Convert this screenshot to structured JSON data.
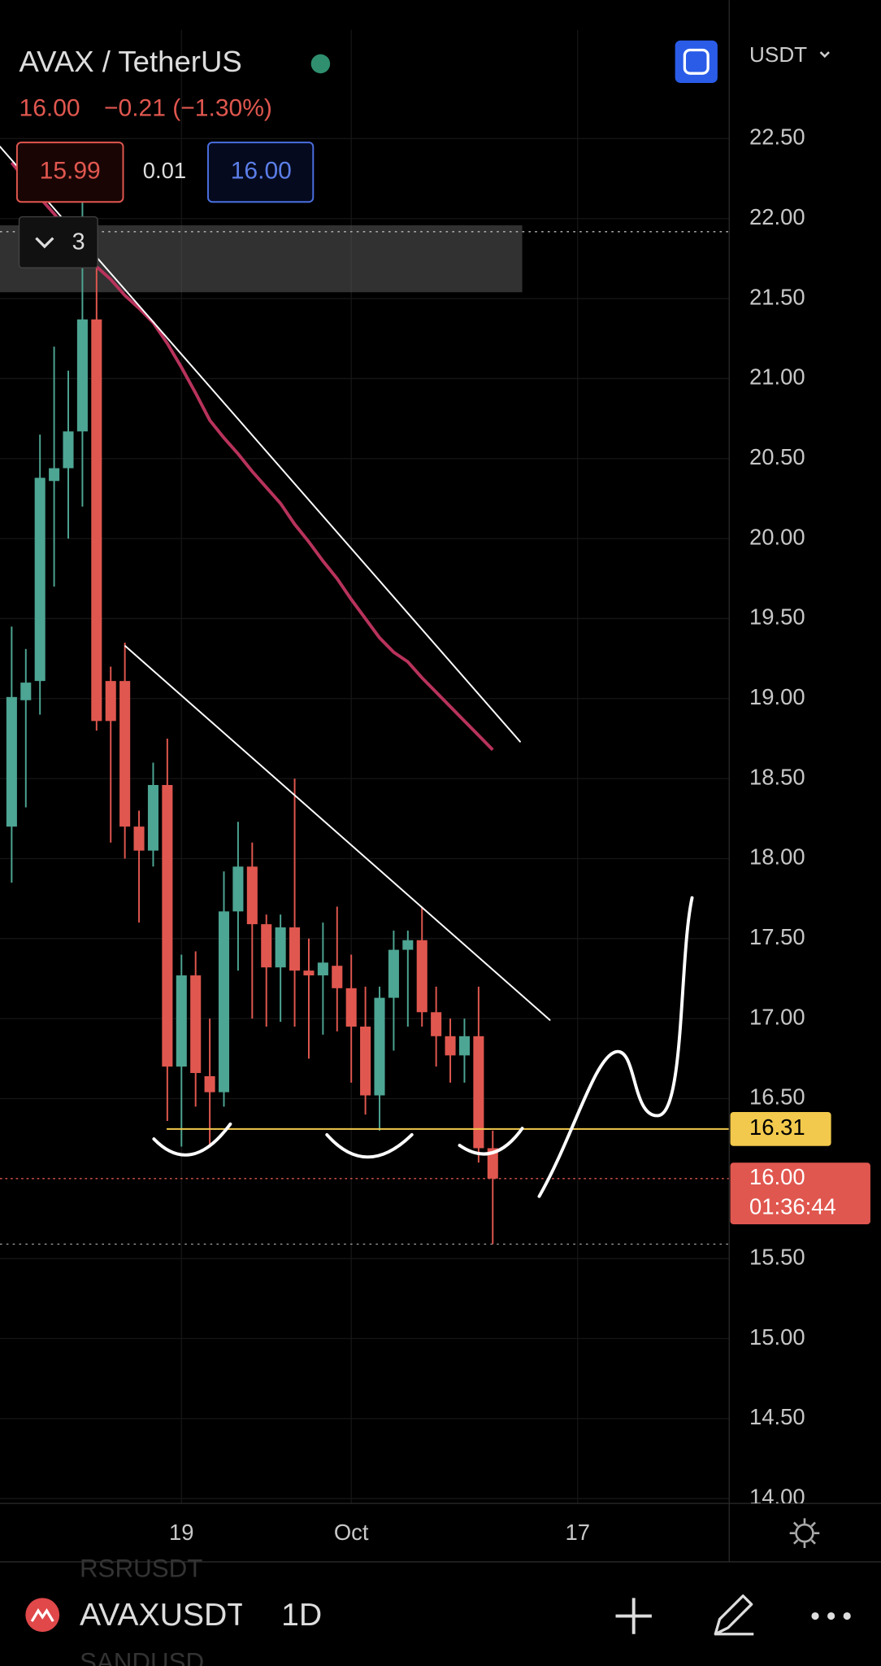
{
  "header": {
    "symbol": "AVAX / TetherUS",
    "last": "16.00",
    "change": "−0.21 (−1.30%)",
    "bid": "15.99",
    "spread": "0.01",
    "ask": "16.00",
    "indicators": "3",
    "currency": "USDT"
  },
  "chart_data": {
    "type": "candlestick",
    "categories": [
      null,
      null,
      null,
      null,
      null,
      null,
      null,
      null,
      null,
      null,
      null,
      null,
      "19",
      null,
      null,
      null,
      null,
      null,
      null,
      null,
      null,
      null,
      null,
      null,
      "Oct",
      null,
      null,
      null,
      null,
      null,
      null,
      null,
      null,
      null,
      null,
      null,
      null,
      null,
      null,
      null,
      "17",
      null,
      null,
      null,
      null,
      null,
      null,
      null,
      null,
      null,
      null
    ],
    "open": [
      18.2,
      18.99,
      19.11,
      20.36,
      20.44,
      20.67,
      21.37,
      19.11,
      19.11,
      18.2,
      18.05,
      18.46,
      16.7,
      17.27,
      16.64,
      16.54,
      17.67,
      17.95,
      17.59,
      17.32,
      17.57,
      17.3,
      17.27,
      17.33,
      17.19,
      16.95,
      16.52,
      17.13,
      17.43,
      17.49,
      17.04,
      16.89,
      16.77,
      16.89,
      16.19,
      null,
      null,
      null,
      null,
      null,
      null,
      null,
      null,
      null,
      null,
      null,
      null,
      null,
      null,
      null,
      null
    ],
    "high": [
      19.45,
      19.31,
      20.65,
      21.2,
      21.05,
      22.1,
      21.9,
      19.2,
      19.35,
      18.3,
      18.6,
      18.75,
      17.4,
      17.42,
      17.0,
      17.92,
      18.23,
      18.1,
      17.65,
      17.65,
      18.5,
      17.5,
      17.6,
      17.7,
      17.4,
      17.2,
      17.2,
      17.55,
      17.55,
      17.7,
      17.2,
      17.0,
      17.0,
      17.2,
      16.3,
      null,
      null,
      null,
      null,
      null,
      null,
      null,
      null,
      null,
      null,
      null,
      null,
      null,
      null,
      null,
      null
    ],
    "low": [
      17.85,
      18.32,
      18.9,
      19.7,
      20.0,
      20.2,
      18.8,
      18.1,
      18.0,
      17.6,
      17.95,
      16.36,
      16.2,
      16.45,
      16.2,
      16.45,
      17.3,
      17.0,
      16.95,
      16.98,
      16.95,
      16.75,
      16.9,
      16.92,
      16.6,
      16.4,
      16.3,
      16.8,
      16.95,
      16.95,
      16.7,
      16.6,
      16.6,
      16.1,
      15.59,
      null,
      null,
      null,
      null,
      null,
      null,
      null,
      null,
      null,
      null,
      null,
      null,
      null,
      null,
      null,
      null
    ],
    "close": [
      19.01,
      19.1,
      20.38,
      20.44,
      20.67,
      21.37,
      18.86,
      18.86,
      18.2,
      18.05,
      18.46,
      16.7,
      17.27,
      16.66,
      16.54,
      17.67,
      17.95,
      17.59,
      17.32,
      17.57,
      17.3,
      17.27,
      17.35,
      17.19,
      16.95,
      16.52,
      17.13,
      17.43,
      17.49,
      17.04,
      16.89,
      16.77,
      16.89,
      16.19,
      16.0,
      null,
      null,
      null,
      null,
      null,
      null,
      null,
      null,
      null,
      null,
      null,
      null,
      null,
      null,
      null,
      null
    ],
    "ma": {
      "color": "#b8335c",
      "values": [
        22.35,
        22.24,
        22.13,
        22.03,
        21.92,
        21.81,
        21.7,
        21.62,
        21.52,
        21.44,
        21.35,
        21.22,
        21.07,
        20.91,
        20.74,
        20.63,
        20.53,
        20.42,
        20.32,
        20.22,
        20.09,
        19.98,
        19.86,
        19.75,
        19.62,
        19.5,
        19.38,
        19.29,
        19.23,
        19.13,
        19.04,
        18.95,
        18.86,
        18.77,
        18.68,
        null,
        null,
        null,
        null,
        null,
        null,
        null,
        null,
        null,
        null,
        null,
        null,
        null,
        null,
        null,
        null
      ]
    },
    "colors": {
      "up": "#4da593",
      "down": "#e0574f"
    },
    "ylim": [
      13.97,
      23.18
    ],
    "yticks": [
      {
        "value": 22.5,
        "label": "22.50"
      },
      {
        "value": 22,
        "label": "22.00"
      },
      {
        "value": 21.5,
        "label": "21.50"
      },
      {
        "value": 21,
        "label": "21.00"
      },
      {
        "value": 20.5,
        "label": "20.50"
      },
      {
        "value": 20,
        "label": "20.00"
      },
      {
        "value": 19.5,
        "label": "19.50"
      },
      {
        "value": 19,
        "label": "19.00"
      },
      {
        "value": 18.5,
        "label": "18.50"
      },
      {
        "value": 18,
        "label": "18.00"
      },
      {
        "value": 17.5,
        "label": "17.50"
      },
      {
        "value": 17,
        "label": "17.00"
      },
      {
        "value": 16.5,
        "label": "16.50"
      },
      {
        "value": 15.5,
        "label": "15.50"
      },
      {
        "value": 15,
        "label": "15.00"
      },
      {
        "value": 14.5,
        "label": "14.50"
      },
      {
        "value": 14,
        "label": "14.00"
      }
    ],
    "hline": {
      "value": 16.31,
      "color": "#f2c94c"
    },
    "last_price": {
      "value": 16,
      "label": "16.00",
      "countdown": "01:36:44"
    },
    "grid": true
  },
  "toolbar": {
    "prev_symbol": "RSRUSDT",
    "symbol": "AVAXUSDT",
    "interval": "1D",
    "next_symbol": "SANDUSD"
  }
}
